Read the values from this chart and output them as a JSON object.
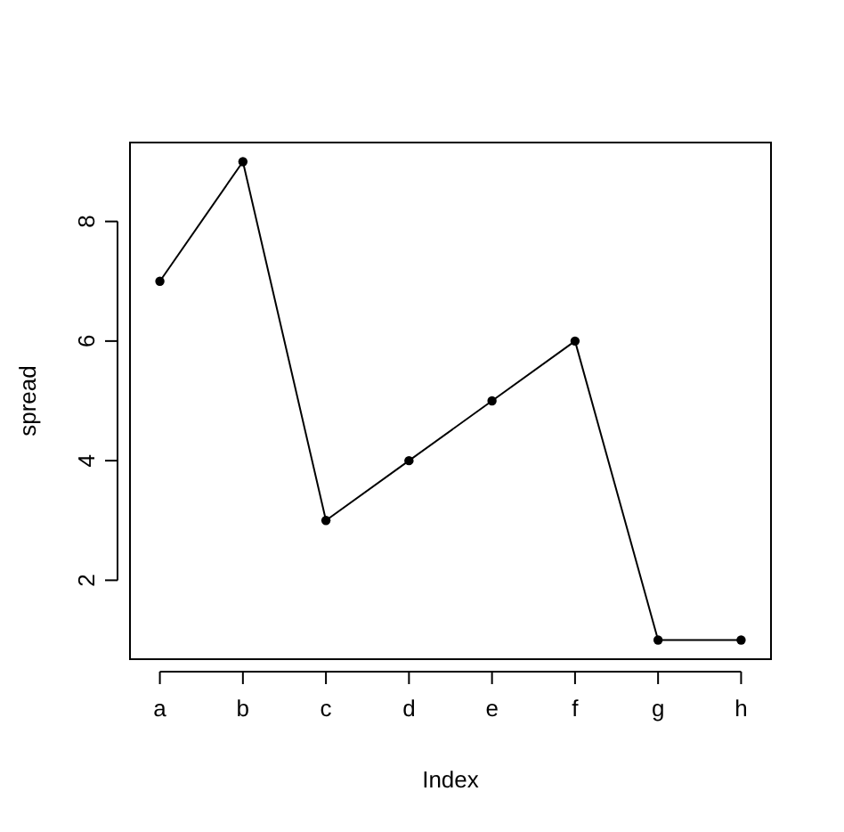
{
  "chart_data": {
    "type": "line",
    "xlabel": "Index",
    "ylabel": "spread",
    "categories": [
      "a",
      "b",
      "c",
      "d",
      "e",
      "f",
      "g",
      "h"
    ],
    "series": [
      {
        "color": "#000000",
        "values": [
          7,
          9,
          3,
          4,
          5,
          6,
          1,
          1
        ]
      }
    ],
    "ylim": [
      0.68,
      9.32
    ],
    "yticks": [
      2,
      4,
      6,
      8
    ],
    "marker": "circle",
    "line_style": "solid"
  }
}
